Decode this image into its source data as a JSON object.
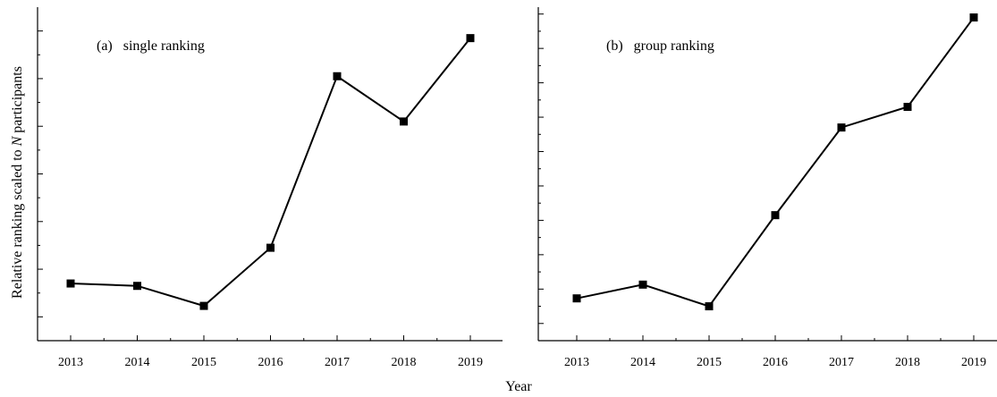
{
  "shared": {
    "xlabel": "Year",
    "ylabel_prefix": "Relative ranking scaled to ",
    "ylabel_var": "N",
    "ylabel_suffix": " participants"
  },
  "chart_data": [
    {
      "type": "line",
      "title": "(a)   single ranking",
      "categories": [
        "2013",
        "2014",
        "2015",
        "2016",
        "2017",
        "2018",
        "2019"
      ],
      "values": [
        0.7,
        0.65,
        0.23,
        1.45,
        5.05,
        4.1,
        5.85
      ],
      "ylim": [
        -0.5,
        6.5
      ],
      "y_major_ticks": [
        0,
        1,
        2,
        3,
        4,
        5,
        6
      ],
      "y_tick_labels_shown": false,
      "marker": "square",
      "color": "#000000"
    },
    {
      "type": "line",
      "title": "(b)   group ranking",
      "categories": [
        "2013",
        "2014",
        "2015",
        "2016",
        "2017",
        "2018",
        "2019"
      ],
      "values": [
        0.73,
        1.13,
        0.5,
        3.15,
        5.7,
        6.3,
        8.9
      ],
      "ylim": [
        -0.5,
        9.2
      ],
      "y_major_ticks": [
        0,
        1,
        2,
        3,
        4,
        5,
        6,
        7,
        8,
        9
      ],
      "y_tick_labels_shown": false,
      "marker": "square",
      "color": "#000000"
    }
  ]
}
